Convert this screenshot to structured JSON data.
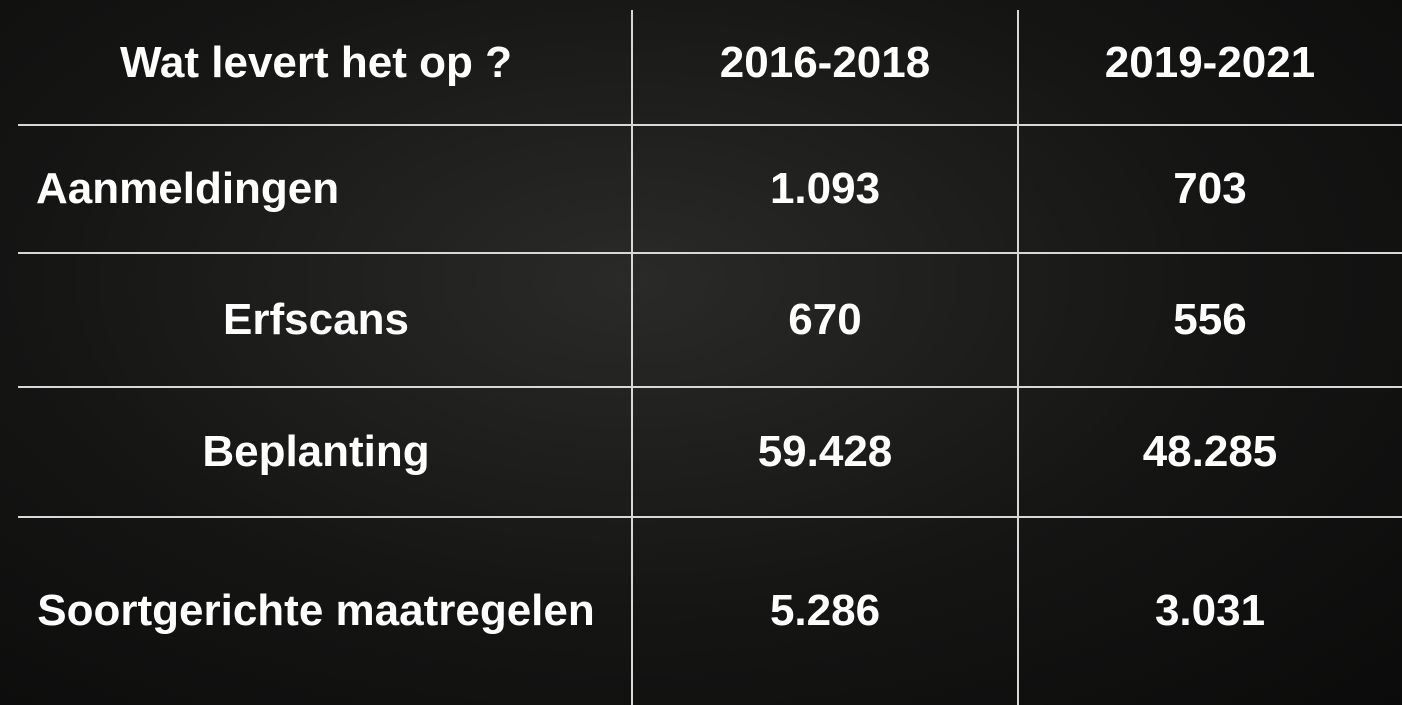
{
  "table": {
    "header": [
      "Wat levert het op ?",
      "2016-2018",
      "2019-2021"
    ],
    "rows": [
      [
        "Aanmeldingen",
        "1.093",
        "703"
      ],
      [
        "Erfscans",
        "670",
        "556"
      ],
      [
        "Beplanting",
        "59.428",
        "48.285"
      ],
      [
        "Soortgerichte maatregelen",
        "5.286",
        "3.031"
      ]
    ]
  }
}
